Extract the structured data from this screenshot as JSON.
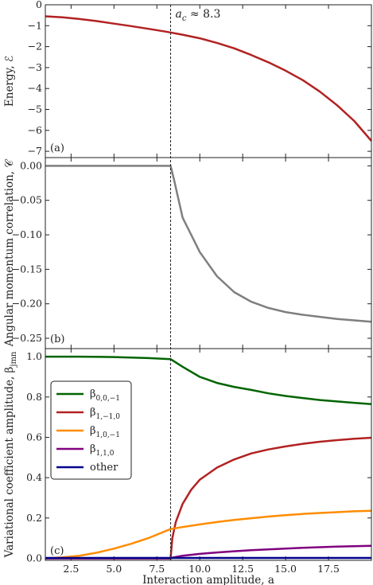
{
  "chart_data": [
    {
      "panel_label": "(a)",
      "type": "line",
      "ylabel": "Energy, ℰ",
      "xlim": [
        1,
        20
      ],
      "ylim": [
        -7.3,
        0
      ],
      "yticks": [
        0,
        -1,
        -2,
        -3,
        -4,
        -5,
        -6,
        -7
      ],
      "yticklabels": [
        "0",
        "−1",
        "−2",
        "−3",
        "−4",
        "−5",
        "−6",
        "−7"
      ],
      "series": [
        {
          "color": "#b22222",
          "x": [
            1,
            2,
            3,
            4,
            5,
            6,
            7,
            8,
            9,
            10,
            11,
            12,
            13,
            14,
            15,
            16,
            17,
            18,
            19,
            20
          ],
          "y": [
            -0.55,
            -0.6,
            -0.68,
            -0.78,
            -0.9,
            -1.02,
            -1.15,
            -1.28,
            -1.43,
            -1.6,
            -1.82,
            -2.08,
            -2.4,
            -2.75,
            -3.15,
            -3.6,
            -4.15,
            -4.8,
            -5.55,
            -6.5
          ]
        }
      ]
    },
    {
      "panel_label": "(b)",
      "type": "line",
      "ylabel": "Angular momentum correlation, 𝒞",
      "xlim": [
        1,
        20
      ],
      "ylim": [
        -0.265,
        0.012
      ],
      "yticks": [
        0,
        -0.05,
        -0.1,
        -0.15,
        -0.2,
        -0.25
      ],
      "yticklabels": [
        "0.00",
        "−0.05",
        "−0.10",
        "−0.15",
        "−0.20",
        "−0.25"
      ],
      "series": [
        {
          "color": "#7f7f7f",
          "x": [
            1,
            8.3,
            8.5,
            9,
            9.5,
            10,
            11,
            12,
            13,
            14,
            15,
            16,
            17,
            18,
            19,
            20
          ],
          "y": [
            0,
            0,
            -0.02,
            -0.075,
            -0.1,
            -0.125,
            -0.16,
            -0.183,
            -0.197,
            -0.206,
            -0.212,
            -0.216,
            -0.219,
            -0.222,
            -0.224,
            -0.226
          ]
        }
      ]
    },
    {
      "panel_label": "(c)",
      "type": "line",
      "ylabel": "Variational coefficient amplitude, β_{jmn}",
      "xlabel": "Interaction amplitude, a",
      "xlim": [
        1,
        20
      ],
      "ylim": [
        -0.01,
        1.04
      ],
      "xticks": [
        2.5,
        5,
        7.5,
        10,
        12.5,
        15,
        17.5
      ],
      "xticklabels": [
        "2.5",
        "5.0",
        "7.5",
        "10.0",
        "12.5",
        "15.0",
        "17.5"
      ],
      "yticks": [
        0,
        0.2,
        0.4,
        0.6,
        0.8,
        1.0
      ],
      "yticklabels": [
        "0.0",
        "0.2",
        "0.4",
        "0.6",
        "0.8",
        "1.0"
      ],
      "legend": "center-left",
      "series": [
        {
          "name_main": "β",
          "name_sub": "0,0,−1",
          "color": "#006400",
          "x": [
            1,
            3,
            5,
            7,
            8.3,
            9,
            10,
            11,
            12,
            13,
            14,
            15,
            16,
            17,
            18,
            19,
            20
          ],
          "y": [
            1.0,
            1.0,
            0.998,
            0.993,
            0.988,
            0.95,
            0.9,
            0.87,
            0.85,
            0.835,
            0.818,
            0.805,
            0.795,
            0.785,
            0.778,
            0.771,
            0.765
          ]
        },
        {
          "name_main": "β",
          "name_sub": "1,−1,0",
          "color": "#b22222",
          "x": [
            1,
            8.3,
            8.4,
            8.6,
            9,
            9.5,
            10,
            11,
            12,
            13,
            14,
            15,
            16,
            17,
            18,
            19,
            20
          ],
          "y": [
            0,
            0,
            0.1,
            0.18,
            0.27,
            0.34,
            0.39,
            0.45,
            0.49,
            0.52,
            0.54,
            0.555,
            0.568,
            0.578,
            0.586,
            0.593,
            0.598
          ]
        },
        {
          "name_main": "β",
          "name_sub": "1,0,−1",
          "color": "#ff8c00",
          "x": [
            1,
            2,
            3,
            4,
            5,
            6,
            7,
            8,
            8.3,
            9,
            10,
            11,
            12,
            13,
            14,
            15,
            16,
            17,
            18,
            19,
            20
          ],
          "y": [
            0,
            0.005,
            0.013,
            0.028,
            0.048,
            0.072,
            0.1,
            0.135,
            0.145,
            0.155,
            0.168,
            0.18,
            0.19,
            0.199,
            0.207,
            0.214,
            0.22,
            0.225,
            0.229,
            0.233,
            0.236
          ]
        },
        {
          "name_main": "β",
          "name_sub": "1,1,0",
          "color": "#800080",
          "x": [
            1,
            8.3,
            8.5,
            9,
            10,
            11,
            12,
            13,
            14,
            15,
            16,
            17,
            18,
            19,
            20
          ],
          "y": [
            0,
            0,
            0.005,
            0.013,
            0.022,
            0.029,
            0.035,
            0.04,
            0.044,
            0.048,
            0.052,
            0.055,
            0.058,
            0.06,
            0.062
          ]
        },
        {
          "name_main": "other",
          "name_sub": "",
          "color": "#00008b",
          "x": [
            1,
            20
          ],
          "y": [
            0.002,
            0.002
          ]
        }
      ]
    }
  ],
  "annotation": {
    "main": "a",
    "sub": "c",
    "rest": " ≈ 8.3"
  },
  "critical_x": 8.3
}
